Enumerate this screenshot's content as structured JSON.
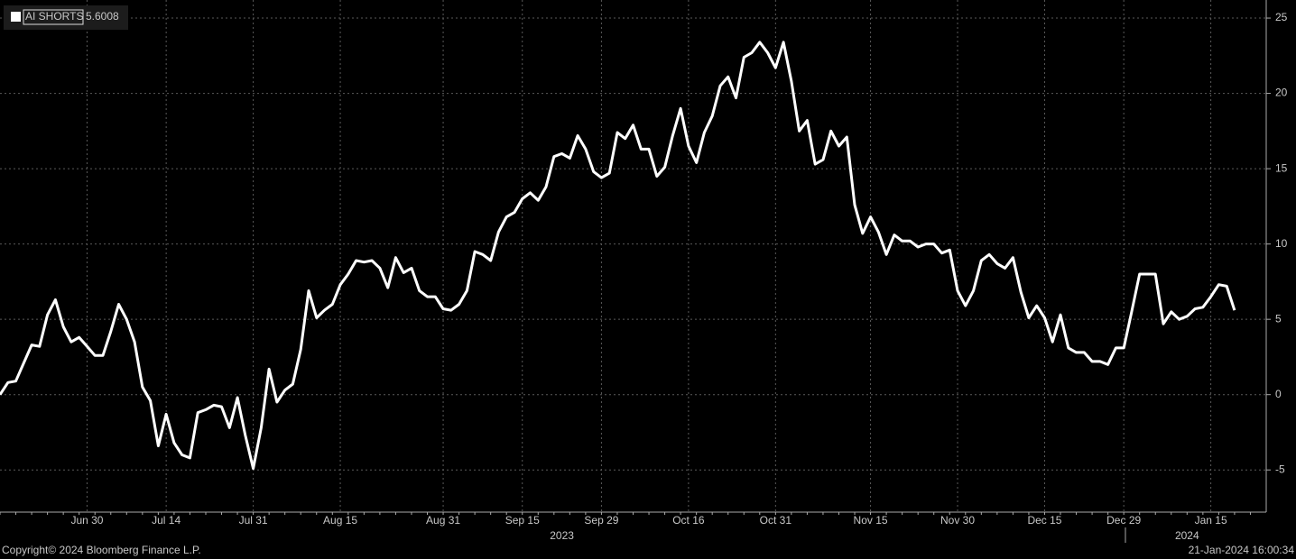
{
  "chart_data": {
    "type": "line",
    "series": [
      {
        "name": "AI SHORTS",
        "color": "#ffffff",
        "last_value": 5.6008,
        "values": [
          0,
          0.8,
          0.9,
          2.1,
          3.3,
          3.2,
          5.3,
          6.3,
          4.5,
          3.5,
          3.8,
          3.2,
          2.6,
          2.6,
          4.2,
          6.0,
          5.0,
          3.5,
          0.5,
          -0.4,
          -3.4,
          -1.3,
          -3.2,
          -4.0,
          -4.2,
          -1.2,
          -1.0,
          -0.7,
          -0.8,
          -2.2,
          -0.2,
          -2.7,
          -4.9,
          -2.2,
          1.7,
          -0.5,
          0.3,
          0.7,
          3.0,
          6.9,
          5.1,
          5.6,
          6.0,
          7.3,
          8.0,
          8.9,
          8.8,
          8.9,
          8.4,
          7.1,
          9.1,
          8.1,
          8.4,
          6.9,
          6.5,
          6.5,
          5.7,
          5.6,
          6.0,
          6.9,
          9.5,
          9.3,
          8.9,
          10.8,
          11.8,
          12.1,
          13.0,
          13.4,
          12.9,
          13.8,
          15.8,
          16.0,
          15.7,
          17.2,
          16.3,
          14.8,
          14.4,
          14.7,
          17.4,
          17.0,
          17.9,
          16.3,
          16.3,
          14.5,
          15.1,
          17.2,
          19.0,
          16.5,
          15.4,
          17.4,
          18.5,
          20.5,
          21.1,
          19.7,
          22.4,
          22.7,
          23.4,
          22.7,
          21.7,
          23.4,
          20.8,
          17.5,
          18.2,
          15.3,
          15.6,
          17.5,
          16.5,
          17.1,
          12.6,
          10.7,
          11.8,
          10.8,
          9.3,
          10.6,
          10.2,
          10.2,
          9.8,
          10.0,
          10.0,
          9.4,
          9.6,
          6.9,
          5.9,
          6.9,
          8.9,
          9.3,
          8.7,
          8.4,
          9.1,
          6.8,
          5.1,
          5.9,
          5.1,
          3.5,
          5.3,
          3.1,
          2.8,
          2.8,
          2.2,
          2.2,
          2.0,
          3.1,
          3.1,
          5.5,
          8.0,
          8.0,
          8.0,
          4.7,
          5.5,
          5.0,
          5.2,
          5.7,
          5.8,
          6.5,
          7.3,
          7.2,
          5.6
        ]
      }
    ],
    "xlim": [
      0,
      160
    ],
    "xticks": [
      {
        "value": 11,
        "label": "Jun 30"
      },
      {
        "value": 21,
        "label": "Jul 14"
      },
      {
        "value": 32,
        "label": "Jul 31"
      },
      {
        "value": 43,
        "label": "Aug 15"
      },
      {
        "value": 56,
        "label": "Aug 31"
      },
      {
        "value": 66,
        "label": "Sep 15"
      },
      {
        "value": 76,
        "label": "Sep 29"
      },
      {
        "value": 87,
        "label": "Oct 16"
      },
      {
        "value": 98,
        "label": "Oct 31"
      },
      {
        "value": 110,
        "label": "Nov 15"
      },
      {
        "value": 121,
        "label": "Nov 30"
      },
      {
        "value": 132,
        "label": "Dec 15"
      },
      {
        "value": 142,
        "label": "Dec 29"
      },
      {
        "value": 153,
        "label": "Jan 15"
      }
    ],
    "year_ticks": [
      {
        "value": 71,
        "label": "2023"
      },
      {
        "value": 150,
        "label": "2024"
      }
    ],
    "ylim": [
      -7.8,
      26.2
    ],
    "yticks": [
      -5,
      0,
      5,
      10,
      15,
      20,
      25
    ],
    "grid": true,
    "legend": "top-left",
    "footer_left": "Copyright© 2024 Bloomberg Finance L.P.",
    "footer_right": "21-Jan-2024 16:00:34"
  }
}
